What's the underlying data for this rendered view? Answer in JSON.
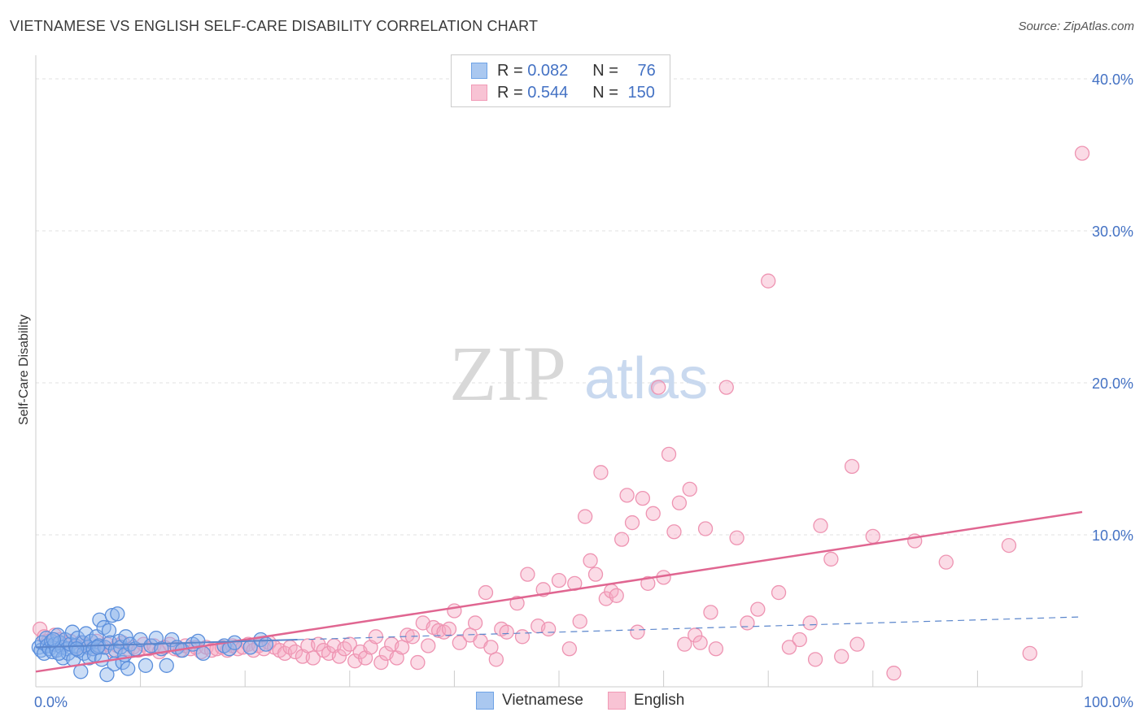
{
  "title": "VIETNAMESE VS ENGLISH SELF-CARE DISABILITY CORRELATION CHART",
  "source": "Source: ZipAtlas.com",
  "watermark": {
    "zip": "ZIP",
    "atlas": "atlas"
  },
  "colors": {
    "blue": "#6fa3e6",
    "blue_fill": "#aac8f0",
    "pink": "#f19ab6",
    "pink_fill": "#f8c3d4",
    "pink_line": "#e06691",
    "blue_line": "#5b86cc",
    "tick": "#4472c4"
  },
  "legend": {
    "rows": [
      {
        "r_label": "R = ",
        "r_value": "0.082",
        "n_label": "N = ",
        "n_value": "76"
      },
      {
        "r_label": "R = ",
        "r_value": "0.544",
        "n_label": "N = ",
        "n_value": "150"
      }
    ]
  },
  "chart_data": {
    "type": "scatter",
    "title": "VIETNAMESE VS ENGLISH SELF-CARE DISABILITY CORRELATION CHART",
    "xlabel": "",
    "ylabel": "Self-Care Disability",
    "xlim": [
      0,
      100
    ],
    "ylim": [
      0,
      42
    ],
    "x_tick_labels": [
      "0.0%",
      "100.0%"
    ],
    "y_ticks": [
      10,
      20,
      30,
      40
    ],
    "y_tick_labels": [
      "10.0%",
      "20.0%",
      "30.0%",
      "40.0%"
    ],
    "grid": true,
    "legend_position": "top-center",
    "series": [
      {
        "name": "Vietnamese",
        "color": "#6fa3e6",
        "trend": {
          "x": [
            0,
            100
          ],
          "y": [
            2.6,
            4.6
          ]
        },
        "points": [
          [
            0.3,
            2.6
          ],
          [
            0.5,
            2.4
          ],
          [
            0.6,
            2.9
          ],
          [
            0.8,
            2.2
          ],
          [
            1.0,
            3.2
          ],
          [
            1.1,
            2.7
          ],
          [
            1.3,
            2.5
          ],
          [
            1.5,
            3.0
          ],
          [
            1.6,
            2.3
          ],
          [
            1.8,
            2.8
          ],
          [
            2.0,
            2.4
          ],
          [
            2.1,
            3.4
          ],
          [
            2.3,
            2.9
          ],
          [
            2.5,
            2.6
          ],
          [
            2.6,
            1.9
          ],
          [
            2.8,
            3.1
          ],
          [
            3.0,
            2.5
          ],
          [
            3.1,
            2.2
          ],
          [
            3.3,
            2.8
          ],
          [
            3.5,
            3.6
          ],
          [
            3.6,
            1.8
          ],
          [
            3.8,
            2.7
          ],
          [
            4.0,
            3.2
          ],
          [
            4.1,
            2.4
          ],
          [
            4.3,
            1.0
          ],
          [
            4.5,
            2.9
          ],
          [
            4.6,
            2.2
          ],
          [
            4.8,
            3.5
          ],
          [
            5.0,
            2.6
          ],
          [
            5.1,
            1.9
          ],
          [
            5.3,
            3.0
          ],
          [
            5.5,
            2.5
          ],
          [
            5.6,
            2.1
          ],
          [
            5.8,
            3.3
          ],
          [
            6.0,
            2.7
          ],
          [
            6.1,
            4.4
          ],
          [
            6.3,
            1.8
          ],
          [
            6.5,
            3.9
          ],
          [
            6.6,
            2.6
          ],
          [
            6.8,
            0.8
          ],
          [
            7.0,
            3.7
          ],
          [
            7.1,
            2.9
          ],
          [
            7.3,
            4.7
          ],
          [
            7.5,
            1.5
          ],
          [
            7.6,
            2.4
          ],
          [
            7.8,
            4.8
          ],
          [
            8.0,
            3.0
          ],
          [
            8.1,
            2.6
          ],
          [
            8.3,
            1.6
          ],
          [
            8.5,
            2.1
          ],
          [
            8.6,
            3.3
          ],
          [
            8.8,
            1.2
          ],
          [
            9.0,
            2.8
          ],
          [
            9.5,
            2.5
          ],
          [
            10.0,
            3.1
          ],
          [
            10.5,
            1.4
          ],
          [
            11.0,
            2.7
          ],
          [
            11.5,
            3.2
          ],
          [
            12.0,
            2.5
          ],
          [
            12.5,
            1.4
          ],
          [
            13.0,
            3.1
          ],
          [
            13.5,
            2.6
          ],
          [
            14.0,
            2.4
          ],
          [
            15.0,
            2.8
          ],
          [
            15.5,
            3.0
          ],
          [
            16.0,
            2.2
          ],
          [
            18.0,
            2.7
          ],
          [
            18.5,
            2.5
          ],
          [
            19.0,
            2.9
          ],
          [
            20.5,
            2.6
          ],
          [
            21.5,
            3.1
          ],
          [
            22.0,
            2.8
          ],
          [
            2.2,
            2.2
          ],
          [
            3.9,
            2.5
          ],
          [
            5.9,
            2.6
          ],
          [
            1.7,
            3.1
          ]
        ]
      },
      {
        "name": "English",
        "color": "#f19ab6",
        "trend": {
          "x": [
            0,
            100
          ],
          "y": [
            1.0,
            11.5
          ]
        },
        "points": [
          [
            0.4,
            3.8
          ],
          [
            0.8,
            3.3
          ],
          [
            1.2,
            3.0
          ],
          [
            1.8,
            3.4
          ],
          [
            2.3,
            3.1
          ],
          [
            2.8,
            2.8
          ],
          [
            3.3,
            3.0
          ],
          [
            3.8,
            2.6
          ],
          [
            4.3,
            2.9
          ],
          [
            4.8,
            2.7
          ],
          [
            5.3,
            2.5
          ],
          [
            5.8,
            3.0
          ],
          [
            6.3,
            2.6
          ],
          [
            6.8,
            2.8
          ],
          [
            7.3,
            2.4
          ],
          [
            7.8,
            2.7
          ],
          [
            8.3,
            2.9
          ],
          [
            8.8,
            2.5
          ],
          [
            9.3,
            2.6
          ],
          [
            9.8,
            2.4
          ],
          [
            10.3,
            2.8
          ],
          [
            10.8,
            2.5
          ],
          [
            11.3,
            2.7
          ],
          [
            11.8,
            2.3
          ],
          [
            12.3,
            2.6
          ],
          [
            12.8,
            2.8
          ],
          [
            13.3,
            2.5
          ],
          [
            13.8,
            2.4
          ],
          [
            14.3,
            2.7
          ],
          [
            14.8,
            2.5
          ],
          [
            15.3,
            2.6
          ],
          [
            15.8,
            2.3
          ],
          [
            16.3,
            2.6
          ],
          [
            16.8,
            2.4
          ],
          [
            17.3,
            2.5
          ],
          [
            17.8,
            2.6
          ],
          [
            18.3,
            2.4
          ],
          [
            18.8,
            2.7
          ],
          [
            19.3,
            2.5
          ],
          [
            19.8,
            2.6
          ],
          [
            20.3,
            2.8
          ],
          [
            20.8,
            2.4
          ],
          [
            21.3,
            2.7
          ],
          [
            21.8,
            2.5
          ],
          [
            22.3,
            2.9
          ],
          [
            22.8,
            2.6
          ],
          [
            23.3,
            2.4
          ],
          [
            23.8,
            2.2
          ],
          [
            24.3,
            2.6
          ],
          [
            24.8,
            2.3
          ],
          [
            25.5,
            2.0
          ],
          [
            26.0,
            2.7
          ],
          [
            26.5,
            1.9
          ],
          [
            27.0,
            2.8
          ],
          [
            27.5,
            2.4
          ],
          [
            28.0,
            2.2
          ],
          [
            28.5,
            2.7
          ],
          [
            29.0,
            2.0
          ],
          [
            29.5,
            2.5
          ],
          [
            30.0,
            2.8
          ],
          [
            30.5,
            1.7
          ],
          [
            31.0,
            2.3
          ],
          [
            31.5,
            1.9
          ],
          [
            32.0,
            2.6
          ],
          [
            32.5,
            3.3
          ],
          [
            33.0,
            1.6
          ],
          [
            33.5,
            2.2
          ],
          [
            34.0,
            2.8
          ],
          [
            34.5,
            1.9
          ],
          [
            35.0,
            2.6
          ],
          [
            35.5,
            3.4
          ],
          [
            36.0,
            3.3
          ],
          [
            36.5,
            1.6
          ],
          [
            37.0,
            4.2
          ],
          [
            37.5,
            2.7
          ],
          [
            38.0,
            3.9
          ],
          [
            38.5,
            3.7
          ],
          [
            39.0,
            3.6
          ],
          [
            39.5,
            3.8
          ],
          [
            40.0,
            5.0
          ],
          [
            40.5,
            2.9
          ],
          [
            41.5,
            3.4
          ],
          [
            42.0,
            4.2
          ],
          [
            42.5,
            3.0
          ],
          [
            43.0,
            6.2
          ],
          [
            43.5,
            2.6
          ],
          [
            44.0,
            1.8
          ],
          [
            44.5,
            3.8
          ],
          [
            45.0,
            3.6
          ],
          [
            46.0,
            5.5
          ],
          [
            46.5,
            3.3
          ],
          [
            47.0,
            7.4
          ],
          [
            48.0,
            4.0
          ],
          [
            48.5,
            6.4
          ],
          [
            49.0,
            3.8
          ],
          [
            50.0,
            7.0
          ],
          [
            51.0,
            2.5
          ],
          [
            51.5,
            6.8
          ],
          [
            52.0,
            4.3
          ],
          [
            52.5,
            11.2
          ],
          [
            53.0,
            8.3
          ],
          [
            53.5,
            7.4
          ],
          [
            54.0,
            14.1
          ],
          [
            54.5,
            5.8
          ],
          [
            55.0,
            6.3
          ],
          [
            55.5,
            6.0
          ],
          [
            56.0,
            9.7
          ],
          [
            56.5,
            12.6
          ],
          [
            57.0,
            10.8
          ],
          [
            57.5,
            3.6
          ],
          [
            58.0,
            12.4
          ],
          [
            58.5,
            6.8
          ],
          [
            59.0,
            11.4
          ],
          [
            59.5,
            19.7
          ],
          [
            60.0,
            7.2
          ],
          [
            60.5,
            15.3
          ],
          [
            61.0,
            10.2
          ],
          [
            61.5,
            12.1
          ],
          [
            62.0,
            2.8
          ],
          [
            62.5,
            13.0
          ],
          [
            63.0,
            3.4
          ],
          [
            63.5,
            2.9
          ],
          [
            64.0,
            10.4
          ],
          [
            64.5,
            4.9
          ],
          [
            65.0,
            2.5
          ],
          [
            66.0,
            19.7
          ],
          [
            67.0,
            9.8
          ],
          [
            68.0,
            4.2
          ],
          [
            69.0,
            5.1
          ],
          [
            70.0,
            26.7
          ],
          [
            71.0,
            6.2
          ],
          [
            72.0,
            2.6
          ],
          [
            73.0,
            3.1
          ],
          [
            74.0,
            4.2
          ],
          [
            75.0,
            10.6
          ],
          [
            76.0,
            8.4
          ],
          [
            77.0,
            2.0
          ],
          [
            78.0,
            14.5
          ],
          [
            78.5,
            2.8
          ],
          [
            80.0,
            9.9
          ],
          [
            82.0,
            0.9
          ],
          [
            84.0,
            9.6
          ],
          [
            87.0,
            8.2
          ],
          [
            93.0,
            9.3
          ],
          [
            95.0,
            2.2
          ],
          [
            100.0,
            35.1
          ],
          [
            74.5,
            1.8
          ]
        ]
      }
    ]
  },
  "bottom_legend": [
    {
      "label": "Vietnamese"
    },
    {
      "label": "English"
    }
  ]
}
